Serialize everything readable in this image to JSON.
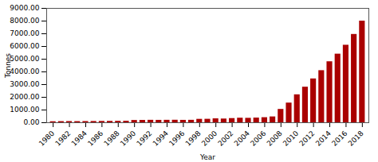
{
  "chart_data": {
    "type": "bar",
    "x": [
      1980,
      1981,
      1982,
      1983,
      1984,
      1985,
      1986,
      1987,
      1988,
      1989,
      1990,
      1991,
      1992,
      1993,
      1994,
      1995,
      1996,
      1997,
      1998,
      1999,
      2000,
      2001,
      2002,
      2003,
      2004,
      2005,
      2006,
      2007,
      2008,
      2009,
      2010,
      2011,
      2012,
      2013,
      2014,
      2015,
      2016,
      2017,
      2018
    ],
    "values": [
      80,
      90,
      95,
      90,
      95,
      100,
      105,
      110,
      115,
      120,
      180,
      185,
      195,
      190,
      195,
      200,
      190,
      195,
      270,
      275,
      310,
      295,
      330,
      360,
      350,
      370,
      400,
      460,
      1050,
      1550,
      2200,
      2800,
      3450,
      4100,
      4800,
      5400,
      6100,
      6950,
      8000
    ],
    "color": "#aa0000",
    "xlabel": "Year",
    "ylabel": "Tonnes",
    "xlim": [
      1979.2,
      2018.8
    ],
    "xticks": [
      1980,
      1982,
      1984,
      1986,
      1988,
      1990,
      1992,
      1994,
      1996,
      1998,
      2000,
      2002,
      2004,
      2006,
      2008,
      2010,
      2012,
      2014,
      2016,
      2018
    ],
    "ylim": [
      0,
      9000
    ],
    "yticks": [
      {
        "value": 0,
        "label": "0.00"
      },
      {
        "value": 1000,
        "label": "1000.00"
      },
      {
        "value": 2000,
        "label": "2000.00"
      },
      {
        "value": 3000,
        "label": "3000.00"
      },
      {
        "value": 4000,
        "label": "4000.00"
      },
      {
        "value": 5000,
        "label": "5000.00"
      },
      {
        "value": 6000,
        "label": "6000.00"
      },
      {
        "value": 7000,
        "label": "7000.00"
      },
      {
        "value": 8000,
        "label": "8000.00"
      },
      {
        "value": 9000,
        "label": "9000.00"
      }
    ],
    "grid": false
  }
}
